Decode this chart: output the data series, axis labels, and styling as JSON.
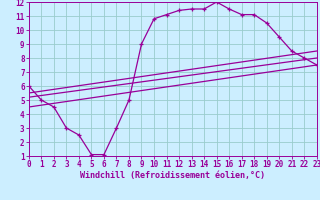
{
  "xlabel": "Windchill (Refroidissement éolien,°C)",
  "bg_color": "#cceeff",
  "grid_color": "#99cccc",
  "line_color": "#990099",
  "xmin": 0,
  "xmax": 23,
  "ymin": 1,
  "ymax": 12,
  "line1_x": [
    0,
    1,
    2,
    3,
    4,
    5,
    6,
    7,
    8,
    9,
    10,
    11,
    12,
    13,
    14,
    15,
    16,
    17,
    18,
    19,
    20,
    21,
    22,
    23
  ],
  "line1_y": [
    6.0,
    5.0,
    4.5,
    3.0,
    2.5,
    1.1,
    1.1,
    3.0,
    5.0,
    9.0,
    10.8,
    11.1,
    11.4,
    11.5,
    11.5,
    12.0,
    11.5,
    11.1,
    11.1,
    10.5,
    9.5,
    8.5,
    8.0,
    7.5
  ],
  "line2_x": [
    0,
    23
  ],
  "line2_y": [
    5.5,
    8.5
  ],
  "line3_x": [
    0,
    23
  ],
  "line3_y": [
    5.2,
    8.0
  ],
  "line4_x": [
    0,
    23
  ],
  "line4_y": [
    4.5,
    7.5
  ],
  "xticks": [
    0,
    1,
    2,
    3,
    4,
    5,
    6,
    7,
    8,
    9,
    10,
    11,
    12,
    13,
    14,
    15,
    16,
    17,
    18,
    19,
    20,
    21,
    22,
    23
  ],
  "yticks": [
    1,
    2,
    3,
    4,
    5,
    6,
    7,
    8,
    9,
    10,
    11,
    12
  ],
  "xlabel_fontsize": 6,
  "tick_fontsize": 5.5
}
